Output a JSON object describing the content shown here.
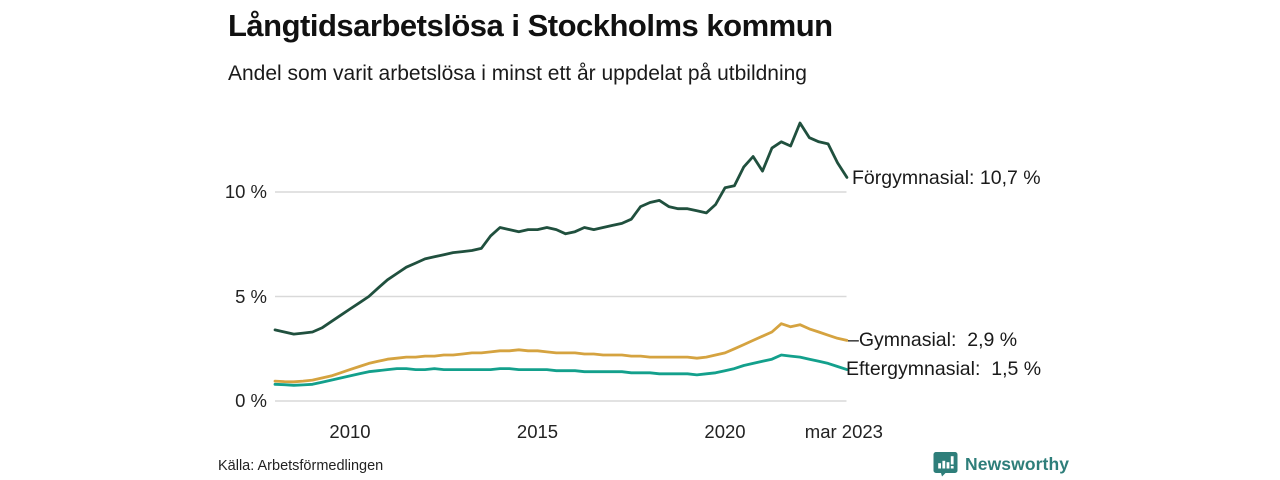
{
  "header": {
    "title": "Långtidsarbetslösa i Stockholms kommun",
    "subtitle": "Andel som varit arbetslösa i minst ett år uppdelat på utbildning"
  },
  "footer": {
    "source": "Källa: Arbetsförmedlingen",
    "brand": {
      "name": "Newsworthy",
      "color": "#2e7e7a"
    }
  },
  "chart_data": {
    "type": "line",
    "title": "Långtidsarbetslösa i Stockholms kommun",
    "subtitle": "Andel som varit arbetslösa i minst ett år uppdelat på utbildning",
    "unit": "%",
    "grid": true,
    "legend_position": "end-of-line-labels",
    "x_start": 2008.0,
    "x_step_years": 0.25,
    "xlim": [
      2008.0,
      2023.25
    ],
    "ylim": [
      0,
      14
    ],
    "y_ticks": [
      {
        "value": 0,
        "label": "0 %"
      },
      {
        "value": 5,
        "label": "5 %"
      },
      {
        "value": 10,
        "label": "10 %"
      }
    ],
    "x_ticks": [
      {
        "x": 2010,
        "label": "2010"
      },
      {
        "x": 2015,
        "label": "2015"
      },
      {
        "x": 2020,
        "label": "2020"
      },
      {
        "x": 2023.17,
        "label": "mar 2023"
      }
    ],
    "grid_color": "#d9d9d9",
    "series": [
      {
        "id": "forgymnasial",
        "name": "Förgymnasial",
        "color": "#20503e",
        "end_label": "Förgymnasial: 10,7 %",
        "end_label_prefix": "",
        "end_value_label": "10,7 %",
        "values": [
          3.4,
          3.3,
          3.2,
          3.25,
          3.3,
          3.5,
          3.8,
          4.1,
          4.4,
          4.7,
          5.0,
          5.4,
          5.8,
          6.1,
          6.4,
          6.6,
          6.8,
          6.9,
          7.0,
          7.1,
          7.15,
          7.2,
          7.3,
          7.9,
          8.3,
          8.2,
          8.1,
          8.2,
          8.2,
          8.3,
          8.2,
          8.0,
          8.1,
          8.3,
          8.2,
          8.3,
          8.4,
          8.5,
          8.7,
          9.3,
          9.5,
          9.6,
          9.3,
          9.2,
          9.2,
          9.1,
          9.0,
          9.4,
          10.2,
          10.3,
          11.2,
          11.7,
          11.0,
          12.1,
          12.4,
          12.2,
          13.3,
          12.6,
          12.4,
          12.3,
          11.4,
          10.7
        ]
      },
      {
        "id": "gymnasial",
        "name": "Gymnasial",
        "color": "#d5a340",
        "end_label": "Gymnasial:  2,9 %",
        "end_label_prefix": "–",
        "end_value_label": "2,9 %",
        "values": [
          0.95,
          0.93,
          0.92,
          0.95,
          1.0,
          1.1,
          1.2,
          1.35,
          1.5,
          1.65,
          1.8,
          1.9,
          2.0,
          2.05,
          2.1,
          2.1,
          2.15,
          2.15,
          2.2,
          2.2,
          2.25,
          2.3,
          2.3,
          2.35,
          2.4,
          2.4,
          2.45,
          2.4,
          2.4,
          2.35,
          2.3,
          2.3,
          2.3,
          2.25,
          2.25,
          2.2,
          2.2,
          2.2,
          2.15,
          2.15,
          2.1,
          2.1,
          2.1,
          2.1,
          2.1,
          2.05,
          2.1,
          2.2,
          2.3,
          2.5,
          2.7,
          2.9,
          3.1,
          3.3,
          3.7,
          3.55,
          3.65,
          3.45,
          3.3,
          3.15,
          3.0,
          2.9
        ]
      },
      {
        "id": "eftergymnasial",
        "name": "Eftergymnasial",
        "color": "#13a08c",
        "end_label": "Eftergymnasial:  1,5 %",
        "end_label_prefix": "",
        "end_value_label": "1,5 %",
        "values": [
          0.8,
          0.78,
          0.75,
          0.77,
          0.8,
          0.9,
          1.0,
          1.1,
          1.2,
          1.3,
          1.4,
          1.45,
          1.5,
          1.55,
          1.55,
          1.5,
          1.5,
          1.55,
          1.5,
          1.5,
          1.5,
          1.5,
          1.5,
          1.5,
          1.55,
          1.55,
          1.5,
          1.5,
          1.5,
          1.5,
          1.45,
          1.45,
          1.45,
          1.4,
          1.4,
          1.4,
          1.4,
          1.4,
          1.35,
          1.35,
          1.35,
          1.3,
          1.3,
          1.3,
          1.3,
          1.25,
          1.3,
          1.35,
          1.45,
          1.55,
          1.7,
          1.8,
          1.9,
          2.0,
          2.2,
          2.15,
          2.1,
          2.0,
          1.9,
          1.8,
          1.65,
          1.5
        ]
      }
    ]
  }
}
